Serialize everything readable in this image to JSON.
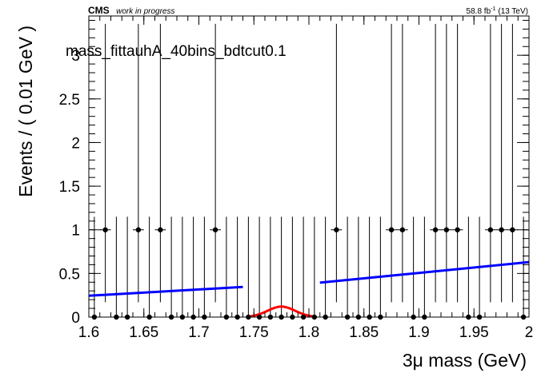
{
  "header": {
    "experiment": "CMS",
    "status": "work in progress",
    "lumi_value": "58.8 fb",
    "lumi_exp": "-1",
    "lumi_energy": "(13 TeV)"
  },
  "chart_data": {
    "type": "scatter",
    "title": "mass_fittauhA_40bins_bdtcut0.1",
    "xlabel": "3μ mass (GeV)",
    "ylabel": "Events / ( 0.01 GeV )",
    "xlim": [
      1.6,
      2.0
    ],
    "ylim": [
      0,
      3.45
    ],
    "grid": false,
    "x_ticks": [
      "1.6",
      "1.65",
      "1.7",
      "1.75",
      "1.8",
      "1.85",
      "1.9",
      "1.95",
      "2"
    ],
    "y_ticks": [
      "0",
      "0.5",
      "1",
      "1.5",
      "2",
      "2.5",
      "3"
    ],
    "series": [
      {
        "kind": "data_points",
        "x": [
          1.605,
          1.615,
          1.625,
          1.635,
          1.645,
          1.655,
          1.665,
          1.675,
          1.685,
          1.695,
          1.705,
          1.715,
          1.725,
          1.735,
          1.745,
          1.755,
          1.765,
          1.775,
          1.785,
          1.795,
          1.805,
          1.815,
          1.825,
          1.835,
          1.845,
          1.855,
          1.865,
          1.875,
          1.885,
          1.895,
          1.905,
          1.915,
          1.925,
          1.935,
          1.945,
          1.955,
          1.965,
          1.975,
          1.985,
          1.995
        ],
        "y": [
          0,
          1,
          0,
          0,
          1,
          0,
          1,
          0,
          0,
          0,
          0,
          1,
          0,
          0,
          0,
          0,
          0,
          0,
          0,
          0,
          0,
          0,
          1,
          0,
          0,
          0,
          0,
          1,
          1,
          0,
          0,
          1,
          1,
          1,
          0,
          0,
          1,
          1,
          1,
          0
        ],
        "err_up": [
          1.15,
          2.36,
          1.15,
          1.15,
          2.36,
          1.15,
          2.36,
          1.15,
          1.15,
          1.15,
          1.15,
          2.36,
          1.15,
          1.15,
          1.15,
          1.15,
          1.15,
          1.15,
          1.15,
          1.15,
          1.15,
          1.15,
          2.36,
          1.15,
          1.15,
          1.15,
          1.15,
          2.36,
          2.36,
          1.15,
          1.15,
          2.36,
          2.36,
          2.36,
          1.15,
          1.15,
          2.36,
          2.36,
          2.36,
          1.15
        ],
        "err_down": [
          0,
          0.83,
          0,
          0,
          0.83,
          0,
          0.83,
          0,
          0,
          0,
          0,
          0.83,
          0,
          0,
          0,
          0,
          0,
          0,
          0,
          0,
          0,
          0,
          0.83,
          0,
          0,
          0,
          0,
          0.83,
          0.83,
          0,
          0,
          0.83,
          0.83,
          0.83,
          0,
          0,
          0.83,
          0.83,
          0.83,
          0
        ],
        "color": "#000000"
      },
      {
        "kind": "line",
        "x": [
          1.6,
          1.74
        ],
        "y": [
          0.245,
          0.345
        ],
        "color": "#0000ff"
      },
      {
        "kind": "line",
        "x": [
          1.81,
          2.0
        ],
        "y": [
          0.395,
          0.63
        ],
        "color": "#0000ff"
      },
      {
        "kind": "gaussian",
        "mean": 1.775,
        "sigma": 0.0125,
        "amplitude": 0.12,
        "range": [
          1.745,
          1.805
        ],
        "color": "#ff0000"
      }
    ]
  }
}
